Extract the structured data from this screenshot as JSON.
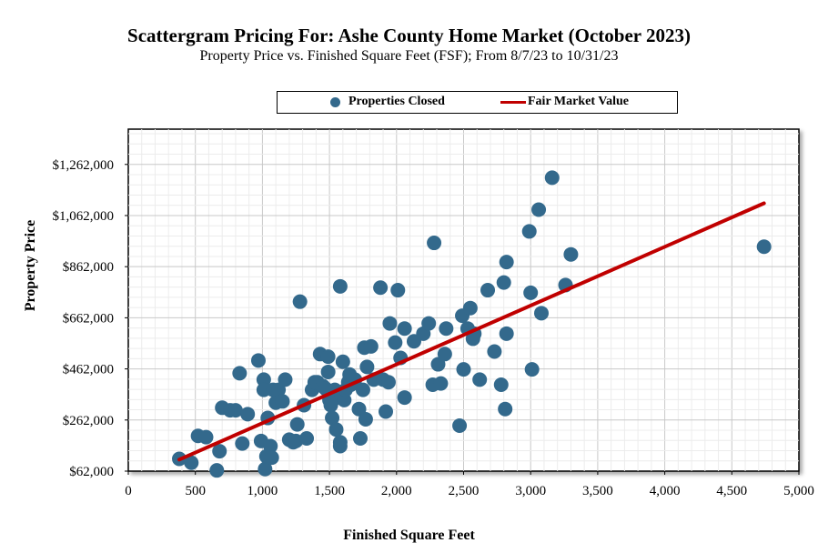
{
  "chart_data": {
    "type": "scatter",
    "title": "Scattergram Pricing For: Ashe County Home Market (October 2023)",
    "subtitle": "Property Price vs. Finished Square Feet (FSF); From 8/7/23 to 10/31/23",
    "xlabel": "Finished Square Feet",
    "ylabel": "Property Price",
    "xlim": [
      0,
      5000
    ],
    "ylim": [
      62000,
      1400000
    ],
    "x_ticks": [
      0,
      500,
      1000,
      1500,
      2000,
      2500,
      3000,
      3500,
      4000,
      4500,
      5000
    ],
    "x_tick_labels": [
      "0",
      "500",
      "1,000",
      "1,500",
      "2,000",
      "2,500",
      "3,000",
      "3,500",
      "4,000",
      "4,500",
      "5,000"
    ],
    "y_ticks": [
      62000,
      262000,
      462000,
      662000,
      862000,
      1062000,
      1262000
    ],
    "y_tick_labels": [
      "$62,000",
      "$262,000",
      "$462,000",
      "$662,000",
      "$862,000",
      "$1,062,000",
      "$1,262,000"
    ],
    "grid": true,
    "legend_position": "top",
    "series": [
      {
        "name": "Properties Closed",
        "type": "scatter",
        "color": "#33698c",
        "points": [
          [
            380,
            110000
          ],
          [
            470,
            95000
          ],
          [
            520,
            200000
          ],
          [
            580,
            195000
          ],
          [
            660,
            65000
          ],
          [
            680,
            140000
          ],
          [
            700,
            310000
          ],
          [
            760,
            300000
          ],
          [
            800,
            300000
          ],
          [
            830,
            445000
          ],
          [
            850,
            170000
          ],
          [
            890,
            285000
          ],
          [
            970,
            495000
          ],
          [
            990,
            180000
          ],
          [
            1010,
            420000
          ],
          [
            1010,
            380000
          ],
          [
            1020,
            70000
          ],
          [
            1030,
            120000
          ],
          [
            1040,
            270000
          ],
          [
            1060,
            160000
          ],
          [
            1070,
            115000
          ],
          [
            1080,
            380000
          ],
          [
            1100,
            330000
          ],
          [
            1120,
            380000
          ],
          [
            1150,
            335000
          ],
          [
            1170,
            420000
          ],
          [
            1200,
            185000
          ],
          [
            1230,
            175000
          ],
          [
            1250,
            180000
          ],
          [
            1260,
            245000
          ],
          [
            1280,
            725000
          ],
          [
            1310,
            320000
          ],
          [
            1330,
            190000
          ],
          [
            1370,
            380000
          ],
          [
            1390,
            410000
          ],
          [
            1410,
            410000
          ],
          [
            1430,
            520000
          ],
          [
            1450,
            395000
          ],
          [
            1470,
            385000
          ],
          [
            1490,
            510000
          ],
          [
            1490,
            450000
          ],
          [
            1500,
            340000
          ],
          [
            1510,
            320000
          ],
          [
            1520,
            270000
          ],
          [
            1540,
            380000
          ],
          [
            1550,
            225000
          ],
          [
            1560,
            350000
          ],
          [
            1580,
            175000
          ],
          [
            1580,
            160000
          ],
          [
            1580,
            785000
          ],
          [
            1590,
            360000
          ],
          [
            1600,
            490000
          ],
          [
            1610,
            340000
          ],
          [
            1620,
            380000
          ],
          [
            1640,
            410000
          ],
          [
            1650,
            440000
          ],
          [
            1660,
            400000
          ],
          [
            1690,
            420000
          ],
          [
            1720,
            305000
          ],
          [
            1730,
            190000
          ],
          [
            1750,
            380000
          ],
          [
            1760,
            545000
          ],
          [
            1770,
            265000
          ],
          [
            1780,
            470000
          ],
          [
            1810,
            550000
          ],
          [
            1830,
            420000
          ],
          [
            1880,
            780000
          ],
          [
            1900,
            420000
          ],
          [
            1920,
            295000
          ],
          [
            1940,
            410000
          ],
          [
            1950,
            640000
          ],
          [
            1990,
            565000
          ],
          [
            2010,
            770000
          ],
          [
            2030,
            505000
          ],
          [
            2060,
            350000
          ],
          [
            2060,
            620000
          ],
          [
            2130,
            570000
          ],
          [
            2200,
            600000
          ],
          [
            2240,
            640000
          ],
          [
            2270,
            400000
          ],
          [
            2280,
            955000
          ],
          [
            2310,
            480000
          ],
          [
            2330,
            405000
          ],
          [
            2360,
            520000
          ],
          [
            2370,
            620000
          ],
          [
            2470,
            240000
          ],
          [
            2490,
            670000
          ],
          [
            2500,
            460000
          ],
          [
            2530,
            620000
          ],
          [
            2550,
            700000
          ],
          [
            2570,
            580000
          ],
          [
            2580,
            600000
          ],
          [
            2620,
            420000
          ],
          [
            2680,
            770000
          ],
          [
            2730,
            530000
          ],
          [
            2780,
            400000
          ],
          [
            2800,
            800000
          ],
          [
            2810,
            305000
          ],
          [
            2820,
            880000
          ],
          [
            2820,
            600000
          ],
          [
            2990,
            1000000
          ],
          [
            3000,
            760000
          ],
          [
            3010,
            460000
          ],
          [
            3060,
            1085000
          ],
          [
            3080,
            680000
          ],
          [
            3160,
            1210000
          ],
          [
            3260,
            790000
          ],
          [
            3300,
            910000
          ],
          [
            4740,
            940000
          ]
        ]
      },
      {
        "name": "Fair Market Value",
        "type": "line",
        "color": "#c00000",
        "points": [
          [
            380,
            107000
          ],
          [
            4740,
            1110000
          ]
        ]
      }
    ]
  }
}
